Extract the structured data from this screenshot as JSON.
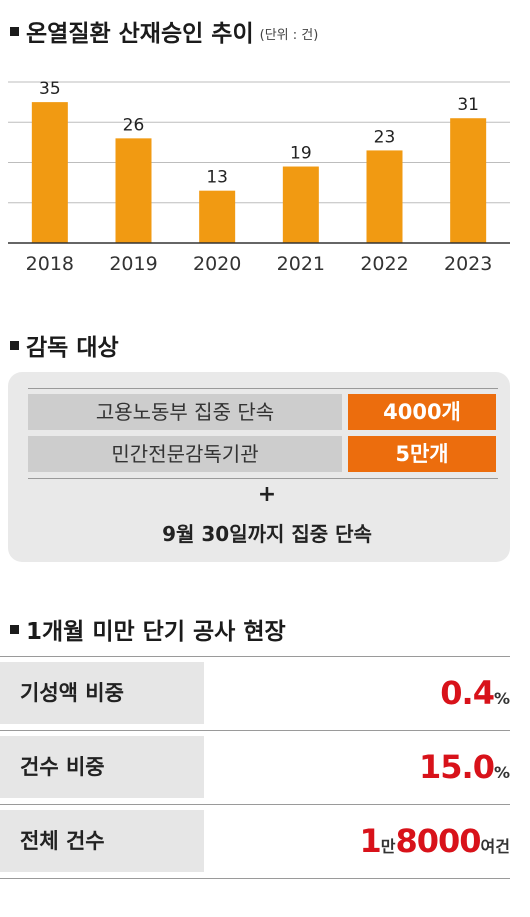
{
  "section1": {
    "title": "온열질환 산재승인 추이",
    "unit": "(단위 : 건)"
  },
  "chart_data": {
    "type": "bar",
    "title": "온열질환 산재승인 추이",
    "unit": "건",
    "categories": [
      "2018",
      "2019",
      "2020",
      "2021",
      "2022",
      "2023"
    ],
    "values": [
      35,
      26,
      13,
      19,
      23,
      31
    ],
    "ylim": [
      0,
      40
    ],
    "grid": true,
    "bar_color": "#f19a12"
  },
  "section2": {
    "title": "감독 대상",
    "rows": [
      {
        "label": "고용노동부 집중 단속",
        "value": "4000개"
      },
      {
        "label": "민간전문감독기관",
        "value": "5만개"
      }
    ],
    "plus": "+",
    "note": "9월 30일까지 집중 단속"
  },
  "section3": {
    "title": "1개월 미만 단기 공사 현장",
    "rows": [
      {
        "label": "기성액 비중",
        "parts": [
          {
            "big": "0.4"
          },
          {
            "small": "%"
          }
        ]
      },
      {
        "label": "건수 비중",
        "parts": [
          {
            "big": "15.0"
          },
          {
            "small": "%"
          }
        ]
      },
      {
        "label": "전체 건수",
        "parts": [
          {
            "big": "1"
          },
          {
            "small": "만"
          },
          {
            "big": "8000"
          },
          {
            "small": "여건"
          }
        ]
      }
    ]
  },
  "colors": {
    "bar": "#f19a12",
    "accent_orange": "#ec6d0d",
    "accent_red": "#d8121a",
    "panel_bg": "#e9e9e9"
  }
}
